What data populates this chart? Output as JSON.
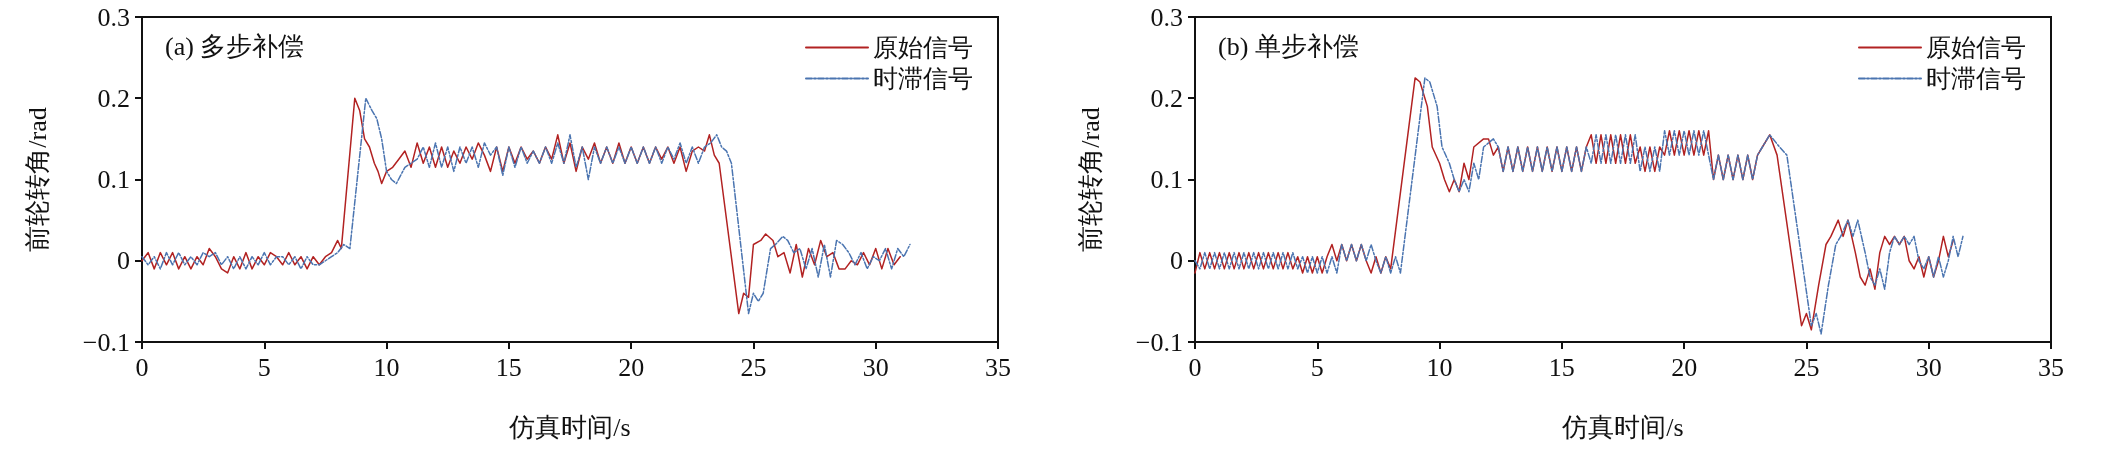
{
  "chart_data": [
    {
      "type": "line",
      "title": "(a) 多步补偿",
      "xlabel": "仿真时间/s",
      "ylabel": "前轮转角/rad",
      "xlim": [
        0,
        35
      ],
      "xticks": [
        0,
        5,
        10,
        15,
        20,
        25,
        30,
        35
      ],
      "ylim": [
        -0.1,
        0.3
      ],
      "yticks": [
        {
          "value": -0.1,
          "label": "−0.1"
        },
        0,
        0.1,
        0.2,
        0.3
      ],
      "legend": "top right",
      "marker": "none",
      "grid": false,
      "series": [
        {
          "name": "原始信号",
          "color": "#b22222",
          "line_style": "solid",
          "x": [
            0,
            0.25,
            0.5,
            0.75,
            1,
            1.25,
            1.5,
            1.75,
            2,
            2.25,
            2.5,
            2.75,
            3,
            3.25,
            3.5,
            3.75,
            4,
            4.25,
            4.5,
            4.75,
            5,
            5.25,
            5.5,
            5.75,
            6,
            6.25,
            6.5,
            6.75,
            7,
            7.25,
            7.5,
            7.75,
            8,
            8.15,
            8.7,
            8.9,
            9.1,
            9.3,
            9.5,
            9.65,
            9.8,
            10,
            10.25,
            10.5,
            10.75,
            11,
            11.25,
            11.5,
            11.75,
            12,
            12.25,
            12.5,
            12.75,
            13,
            13.25,
            13.5,
            13.75,
            14,
            14.25,
            14.5,
            14.75,
            15,
            15.25,
            15.5,
            15.75,
            16,
            16.25,
            16.5,
            16.75,
            17,
            17.25,
            17.5,
            17.75,
            18,
            18.25,
            18.5,
            18.75,
            19,
            19.25,
            19.5,
            19.75,
            20,
            20.25,
            20.5,
            20.75,
            21,
            21.25,
            21.5,
            21.75,
            22,
            22.25,
            22.5,
            22.75,
            23,
            23.2,
            23.4,
            23.6,
            24.4,
            24.6,
            24.8,
            25,
            25.3,
            25.5,
            25.8,
            26,
            26.25,
            26.5,
            26.75,
            27,
            27.25,
            27.5,
            27.75,
            28,
            28.25,
            28.5,
            28.75,
            29,
            29.25,
            29.5,
            29.75,
            30,
            30.25,
            30.5,
            30.75,
            31
          ],
          "values": [
            0,
            0.01,
            -0.01,
            0.01,
            -0.005,
            0.01,
            -0.01,
            0.005,
            -0.01,
            0.005,
            -0.005,
            0.015,
            0.005,
            -0.01,
            -0.015,
            0.005,
            -0.01,
            0.01,
            -0.01,
            0.005,
            -0.005,
            0.01,
            0.005,
            -0.005,
            0.01,
            -0.005,
            0.005,
            -0.01,
            0.005,
            -0.005,
            0.005,
            0.01,
            0.025,
            0.015,
            0.2,
            0.185,
            0.15,
            0.14,
            0.12,
            0.11,
            0.095,
            0.11,
            0.115,
            0.125,
            0.135,
            0.115,
            0.145,
            0.12,
            0.14,
            0.115,
            0.14,
            0.115,
            0.135,
            0.12,
            0.14,
            0.125,
            0.145,
            0.13,
            0.11,
            0.14,
            0.11,
            0.14,
            0.12,
            0.14,
            0.125,
            0.135,
            0.12,
            0.14,
            0.125,
            0.155,
            0.12,
            0.145,
            0.11,
            0.14,
            0.125,
            0.145,
            0.12,
            0.14,
            0.12,
            0.145,
            0.12,
            0.14,
            0.12,
            0.14,
            0.12,
            0.14,
            0.125,
            0.14,
            0.12,
            0.14,
            0.11,
            0.135,
            0.14,
            0.135,
            0.155,
            0.13,
            0.12,
            -0.065,
            -0.04,
            -0.045,
            0.02,
            0.025,
            0.033,
            0.025,
            0.005,
            0.01,
            -0.015,
            0.02,
            -0.02,
            0.015,
            -0.005,
            0.025,
            0.005,
            0.01,
            -0.01,
            -0.01,
            0,
            -0.005,
            0.01,
            -0.005,
            0.015,
            -0.01,
            0.015,
            -0.005,
            0.005
          ]
        },
        {
          "name": "时滞信号",
          "color": "#4a74b0",
          "line_style": "dashed",
          "x": [
            0,
            0.25,
            0.5,
            0.75,
            1,
            1.25,
            1.5,
            1.75,
            2,
            2.25,
            2.5,
            2.75,
            3,
            3.25,
            3.5,
            3.75,
            4,
            4.25,
            4.5,
            4.75,
            5,
            5.25,
            5.5,
            5.75,
            6,
            6.25,
            6.5,
            6.75,
            7,
            7.25,
            7.5,
            7.75,
            8,
            8.25,
            8.5,
            9.15,
            9.4,
            9.6,
            9.8,
            10,
            10.2,
            10.4,
            10.75,
            11,
            11.25,
            11.5,
            11.75,
            12,
            12.25,
            12.5,
            12.75,
            13,
            13.25,
            13.5,
            13.75,
            14,
            14.25,
            14.5,
            14.75,
            15,
            15.25,
            15.5,
            15.75,
            16,
            16.25,
            16.5,
            16.75,
            17,
            17.25,
            17.5,
            17.75,
            18,
            18.25,
            18.5,
            18.75,
            19,
            19.25,
            19.5,
            19.75,
            20,
            20.25,
            20.5,
            20.75,
            21,
            21.25,
            21.5,
            21.75,
            22,
            22.25,
            22.5,
            22.75,
            23,
            23.25,
            23.5,
            23.7,
            23.9,
            24.1,
            24.8,
            25,
            25.2,
            25.4,
            25.7,
            25.9,
            26.2,
            26.4,
            26.65,
            26.9,
            27.15,
            27.4,
            27.65,
            27.9,
            28.15,
            28.4,
            28.65,
            28.9,
            29.15,
            29.4,
            29.65,
            29.9,
            30.15,
            30.4,
            30.65,
            30.9,
            31.15,
            31.4
          ],
          "values": [
            0.005,
            -0.005,
            0.005,
            -0.01,
            0.01,
            -0.005,
            0.01,
            -0.005,
            0.005,
            -0.005,
            0.01,
            0.005,
            0.01,
            -0.005,
            0.005,
            -0.01,
            0.005,
            -0.01,
            0.005,
            -0.005,
            0.01,
            -0.005,
            0.005,
            0.005,
            -0.005,
            0.005,
            -0.01,
            0.005,
            -0.005,
            -0.005,
            0,
            0.005,
            0.01,
            0.02,
            0.015,
            0.2,
            0.185,
            0.175,
            0.15,
            0.11,
            0.1,
            0.095,
            0.115,
            0.12,
            0.125,
            0.14,
            0.115,
            0.145,
            0.115,
            0.14,
            0.11,
            0.14,
            0.12,
            0.14,
            0.115,
            0.145,
            0.13,
            0.14,
            0.105,
            0.14,
            0.115,
            0.14,
            0.12,
            0.135,
            0.12,
            0.14,
            0.12,
            0.145,
            0.12,
            0.155,
            0.115,
            0.14,
            0.1,
            0.14,
            0.12,
            0.14,
            0.12,
            0.14,
            0.12,
            0.14,
            0.12,
            0.14,
            0.12,
            0.14,
            0.12,
            0.14,
            0.125,
            0.145,
            0.12,
            0.14,
            0.12,
            0.14,
            0.145,
            0.155,
            0.14,
            0.135,
            0.12,
            -0.065,
            -0.04,
            -0.05,
            -0.04,
            0.015,
            0.02,
            0.03,
            0.025,
            0.01,
            0.015,
            -0.01,
            0.015,
            -0.02,
            0.02,
            -0.02,
            0.025,
            0.02,
            0.01,
            -0.005,
            0.01,
            -0.01,
            0.005,
            0,
            0.015,
            -0.01,
            0.015,
            0.005,
            0.02
          ]
        }
      ]
    },
    {
      "type": "line",
      "title": "(b) 单步补偿",
      "xlabel": "仿真时间/s",
      "ylabel": "前轮转角/rad",
      "xlim": [
        0,
        35
      ],
      "xticks": [
        0,
        5,
        10,
        15,
        20,
        25,
        30,
        35
      ],
      "ylim": [
        -0.1,
        0.3
      ],
      "yticks": [
        {
          "value": -0.1,
          "label": "−0.1"
        },
        0,
        0.1,
        0.2,
        0.3
      ],
      "legend": "top right",
      "marker": "none",
      "grid": false,
      "series": [
        {
          "name": "原始信号",
          "color": "#b22222",
          "line_style": "solid",
          "x": [
            0,
            0.2,
            0.4,
            0.6,
            0.8,
            1,
            1.2,
            1.4,
            1.6,
            1.8,
            2,
            2.2,
            2.4,
            2.6,
            2.8,
            3,
            3.2,
            3.4,
            3.6,
            3.8,
            4,
            4.2,
            4.4,
            4.6,
            4.8,
            5,
            5.2,
            5.4,
            5.6,
            5.8,
            6,
            6.2,
            6.4,
            6.6,
            6.8,
            7,
            7.2,
            7.4,
            7.6,
            7.8,
            8,
            9,
            9.2,
            9.5,
            9.7,
            10,
            10.2,
            10.4,
            10.6,
            10.8,
            11,
            11.2,
            11.4,
            11.8,
            12,
            12.2,
            12.4,
            12.6,
            12.8,
            13,
            13.2,
            13.4,
            13.6,
            13.8,
            14,
            14.2,
            14.4,
            14.6,
            14.8,
            15,
            15.2,
            15.4,
            15.6,
            15.8,
            16,
            16.2,
            16.4,
            16.6,
            16.8,
            17,
            17.2,
            17.4,
            17.6,
            17.8,
            18,
            18.2,
            18.4,
            18.6,
            18.8,
            19,
            19.2,
            19.4,
            19.6,
            19.8,
            20,
            20.2,
            20.4,
            20.6,
            20.8,
            21,
            21.2,
            21.4,
            21.6,
            21.8,
            22,
            22.2,
            22.4,
            22.6,
            22.8,
            23,
            23.2,
            23.5,
            23.8,
            24.8,
            25,
            25.2,
            25.5,
            25.8,
            26,
            26.3,
            26.5,
            26.7,
            27,
            27.2,
            27.4,
            27.6,
            27.8,
            28,
            28.2,
            28.4,
            28.6,
            28.8,
            29,
            29.2,
            29.4,
            29.6,
            29.8,
            30,
            30.2,
            30.4,
            30.6,
            30.8,
            31
          ],
          "values": [
            -0.015,
            0.01,
            -0.01,
            0.01,
            -0.01,
            0.01,
            -0.01,
            0.01,
            -0.01,
            0.01,
            -0.01,
            0.01,
            -0.01,
            0.01,
            -0.01,
            0.01,
            -0.01,
            0.01,
            -0.01,
            0.01,
            -0.01,
            0.005,
            -0.015,
            0.005,
            -0.015,
            0.005,
            -0.015,
            0.005,
            0.02,
            0,
            0.02,
            0,
            0.02,
            0,
            0.02,
            0,
            -0.015,
            0.005,
            -0.015,
            0.005,
            -0.01,
            0.225,
            0.22,
            0.19,
            0.14,
            0.12,
            0.1,
            0.085,
            0.1,
            0.085,
            0.12,
            0.1,
            0.14,
            0.15,
            0.15,
            0.13,
            0.14,
            0.11,
            0.14,
            0.11,
            0.14,
            0.11,
            0.14,
            0.11,
            0.14,
            0.11,
            0.14,
            0.11,
            0.14,
            0.11,
            0.14,
            0.11,
            0.14,
            0.11,
            0.14,
            0.155,
            0.12,
            0.155,
            0.12,
            0.155,
            0.12,
            0.155,
            0.12,
            0.155,
            0.12,
            0.14,
            0.11,
            0.14,
            0.11,
            0.14,
            0.13,
            0.16,
            0.13,
            0.16,
            0.13,
            0.16,
            0.13,
            0.16,
            0.13,
            0.16,
            0.1,
            0.13,
            0.1,
            0.13,
            0.1,
            0.13,
            0.1,
            0.13,
            0.1,
            0.13,
            0.14,
            0.155,
            0.13,
            -0.08,
            -0.065,
            -0.085,
            -0.03,
            0.02,
            0.03,
            0.05,
            0.03,
            0.05,
            0.01,
            -0.02,
            -0.03,
            -0.01,
            -0.035,
            0.01,
            0.03,
            0.02,
            0.03,
            0.02,
            0.03,
            0,
            -0.01,
            0.005,
            -0.02,
            0.005,
            -0.02,
            0,
            0.03,
            0.005,
            0.025
          ]
        },
        {
          "name": "时滞信号",
          "color": "#4a74b0",
          "line_style": "dashed",
          "x": [
            0,
            0.2,
            0.4,
            0.6,
            0.8,
            1,
            1.2,
            1.4,
            1.6,
            1.8,
            2,
            2.2,
            2.4,
            2.6,
            2.8,
            3,
            3.2,
            3.4,
            3.6,
            3.8,
            4,
            4.2,
            4.4,
            4.6,
            4.8,
            5,
            5.2,
            5.4,
            5.6,
            5.8,
            6,
            6.2,
            6.4,
            6.6,
            6.8,
            7,
            7.2,
            7.4,
            7.6,
            7.8,
            8,
            8.2,
            8.4,
            9.4,
            9.6,
            9.9,
            10.1,
            10.4,
            10.6,
            10.8,
            11,
            11.2,
            11.4,
            11.6,
            11.8,
            12.2,
            12.4,
            12.6,
            12.8,
            13,
            13.2,
            13.4,
            13.6,
            13.8,
            14,
            14.2,
            14.4,
            14.6,
            14.8,
            15,
            15.2,
            15.4,
            15.6,
            15.8,
            16,
            16.2,
            16.4,
            16.6,
            16.8,
            17,
            17.2,
            17.4,
            17.6,
            17.8,
            18,
            18.2,
            18.4,
            18.6,
            18.8,
            19,
            19.2,
            19.4,
            19.6,
            19.8,
            20,
            20.2,
            20.4,
            20.6,
            20.8,
            21,
            21.2,
            21.4,
            21.6,
            21.8,
            22,
            22.2,
            22.4,
            22.6,
            22.8,
            23,
            23.2,
            23.5,
            23.9,
            24.2,
            25.2,
            25.4,
            25.6,
            25.9,
            26.2,
            26.4,
            26.7,
            26.9,
            27.1,
            27.4,
            27.6,
            27.8,
            28,
            28.2,
            28.4,
            28.6,
            28.8,
            29,
            29.2,
            29.4,
            29.6,
            29.8,
            30,
            30.2,
            30.4,
            30.6,
            30.8,
            31,
            31.2,
            31.4
          ],
          "values": [
            0,
            -0.01,
            0.01,
            -0.01,
            0.01,
            -0.01,
            0.01,
            -0.01,
            0.01,
            -0.01,
            0.01,
            -0.01,
            0.01,
            -0.01,
            0.01,
            -0.01,
            0.01,
            -0.01,
            0.01,
            -0.01,
            0.01,
            -0.01,
            0.005,
            -0.015,
            0.005,
            -0.015,
            0.005,
            -0.015,
            0.005,
            -0.015,
            0.02,
            0,
            0.02,
            0,
            0.02,
            0,
            0.02,
            0,
            -0.015,
            0.005,
            -0.015,
            0.005,
            -0.015,
            0.225,
            0.22,
            0.19,
            0.14,
            0.12,
            0.1,
            0.085,
            0.1,
            0.085,
            0.12,
            0.1,
            0.14,
            0.15,
            0.14,
            0.11,
            0.14,
            0.11,
            0.14,
            0.11,
            0.14,
            0.11,
            0.14,
            0.11,
            0.14,
            0.11,
            0.14,
            0.11,
            0.14,
            0.11,
            0.14,
            0.11,
            0.14,
            0.12,
            0.155,
            0.12,
            0.155,
            0.12,
            0.155,
            0.12,
            0.155,
            0.12,
            0.155,
            0.11,
            0.14,
            0.11,
            0.14,
            0.11,
            0.16,
            0.13,
            0.16,
            0.13,
            0.16,
            0.13,
            0.16,
            0.13,
            0.16,
            0.13,
            0.1,
            0.13,
            0.1,
            0.13,
            0.1,
            0.13,
            0.1,
            0.13,
            0.1,
            0.13,
            0.14,
            0.155,
            0.14,
            0.13,
            -0.08,
            -0.065,
            -0.09,
            -0.03,
            0.02,
            0.03,
            0.05,
            0.03,
            0.05,
            0.01,
            -0.02,
            -0.03,
            -0.01,
            -0.035,
            0.01,
            0.03,
            0.02,
            0.03,
            0.02,
            0.03,
            0,
            -0.01,
            0.005,
            -0.02,
            0.005,
            -0.02,
            0,
            0.03,
            0.005,
            0.03
          ]
        }
      ]
    }
  ]
}
